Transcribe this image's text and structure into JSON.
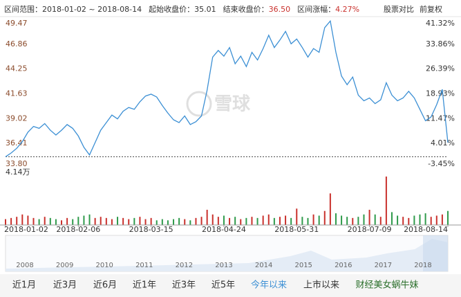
{
  "header": {
    "range_label": "区间范围：",
    "range": "2018-01-02 ~ 2018-08-14",
    "start_label": "起始收盘价：",
    "start_close": 35.01,
    "end_label": "结束收盘价：",
    "end_close": {
      "value": 36.5,
      "label": "36.50"
    },
    "change_label": "区间涨幅：",
    "change": {
      "value": 4.27,
      "label": "4.27%"
    },
    "compare": "股票对比",
    "adjust": "前复权"
  },
  "chart_data": {
    "type": "line",
    "categories": [
      "2018-01-02",
      null,
      null,
      null,
      null,
      null,
      null,
      null,
      null,
      null,
      null,
      null,
      null,
      "2018-02-06",
      null,
      null,
      null,
      null,
      null,
      null,
      null,
      null,
      null,
      null,
      null,
      null,
      "2018-03-15",
      null,
      null,
      null,
      null,
      null,
      null,
      null,
      null,
      null,
      null,
      null,
      null,
      "2018-04-24",
      null,
      null,
      null,
      null,
      null,
      null,
      null,
      null,
      null,
      null,
      null,
      null,
      "2018-05-31",
      null,
      null,
      null,
      null,
      null,
      null,
      null,
      null,
      null,
      null,
      null,
      null,
      "2018-07-09",
      null,
      null,
      null,
      null,
      null,
      null,
      null,
      null,
      null,
      null,
      null,
      null,
      null,
      "2018-08-14"
    ],
    "series": [
      {
        "name": "收盘价",
        "color": "#3b8fd4",
        "values": [
          35.01,
          35.4,
          35.9,
          36.6,
          37.6,
          38.2,
          38.0,
          38.5,
          37.8,
          37.3,
          37.8,
          38.4,
          38.0,
          37.2,
          36.0,
          35.2,
          36.5,
          37.8,
          38.6,
          39.4,
          39.0,
          39.8,
          40.2,
          40.0,
          40.8,
          41.4,
          41.6,
          41.3,
          40.4,
          39.6,
          38.9,
          38.6,
          39.3,
          38.4,
          38.7,
          39.3,
          42.0,
          45.5,
          46.2,
          45.6,
          46.5,
          44.8,
          45.6,
          44.5,
          46.0,
          45.2,
          46.4,
          47.8,
          46.5,
          47.3,
          48.2,
          46.9,
          47.4,
          46.5,
          45.5,
          46.4,
          46.0,
          48.6,
          49.3,
          46.0,
          43.5,
          42.6,
          43.4,
          41.5,
          40.9,
          41.2,
          40.6,
          41.0,
          42.8,
          41.5,
          40.9,
          41.2,
          41.9,
          41.2,
          40.0,
          38.8,
          39.2,
          40.5,
          42.1,
          36.5
        ]
      },
      {
        "name": "成交量",
        "values": [
          0.5,
          0.6,
          0.7,
          0.9,
          0.8,
          0.6,
          0.5,
          0.7,
          0.6,
          0.5,
          0.4,
          0.6,
          0.5,
          0.7,
          0.8,
          0.9,
          0.6,
          0.7,
          0.6,
          0.5,
          0.7,
          0.6,
          0.5,
          0.6,
          0.7,
          0.5,
          0.6,
          0.4,
          0.5,
          0.4,
          0.5,
          0.6,
          0.5,
          0.4,
          0.6,
          0.7,
          1.3,
          0.9,
          0.7,
          0.8,
          0.6,
          0.7,
          0.5,
          0.6,
          0.7,
          0.6,
          0.8,
          0.9,
          0.6,
          0.7,
          0.8,
          0.6,
          1.4,
          0.7,
          0.6,
          0.9,
          0.8,
          1.2,
          2.7,
          1.0,
          0.8,
          0.7,
          0.6,
          0.7,
          0.9,
          1.3,
          0.9,
          0.7,
          4.14,
          1.1,
          0.8,
          0.7,
          0.6,
          0.8,
          0.9,
          1.0,
          0.7,
          0.8,
          0.9,
          1.2
        ]
      }
    ],
    "ylim": [
      33.8,
      49.47
    ],
    "yticks": [
      49.47,
      46.86,
      44.25,
      41.63,
      39.02,
      36.41,
      {
        "value": 33.8,
        "label": "33.80"
      }
    ],
    "y2lim": [
      -3.45,
      41.32
    ],
    "y2ticks": [
      {
        "value": 41.32,
        "label": "41.32%"
      },
      {
        "value": 33.86,
        "label": "33.86%"
      },
      {
        "value": 26.39,
        "label": "26.39%"
      },
      {
        "value": 18.93,
        "label": "18.93%"
      },
      {
        "value": 11.47,
        "label": "11.47%"
      },
      {
        "value": 4.01,
        "label": "4.01%"
      },
      {
        "value": -3.45,
        "label": "-3.45%"
      }
    ],
    "volume_lim": [
      0,
      4.14
    ],
    "volume_ticks": [
      {
        "value": 4.14,
        "label": "4.14万"
      }
    ],
    "up_color": "#c9302c",
    "down_color": "#2e9a4a"
  },
  "navigator": {
    "years": [
      "2008",
      "2009",
      "2010",
      "2011",
      "2012",
      "2013",
      "2014",
      "2015",
      "2016",
      "2017",
      "2018"
    ]
  },
  "tabs": {
    "items": [
      "近1月",
      "近3月",
      "近6月",
      "近1年",
      "近3年",
      "近5年",
      "今年以来",
      "上市以来"
    ],
    "active": 6
  },
  "watermark": "雪球",
  "footer": "财经美女蜗牛妹"
}
